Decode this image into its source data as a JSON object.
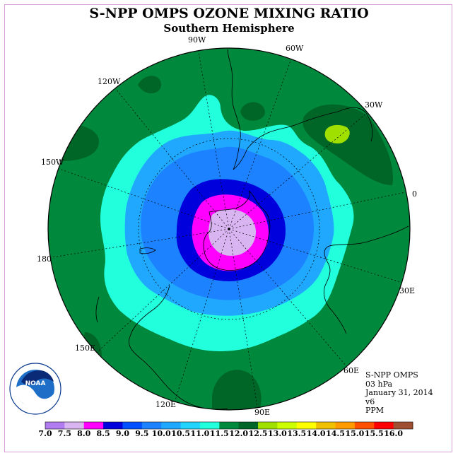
{
  "header": {
    "title": "S-NPP OMPS OZONE MIXING RATIO",
    "subtitle": "Southern Hemisphere"
  },
  "map": {
    "projection": "polar stereographic (south pole)",
    "longitude_labels": {
      "lon_90w": "90W",
      "lon_60w": "60W",
      "lon_30w": "30W",
      "lon_0": "0",
      "lon_30e": "30E",
      "lon_60e": "60E",
      "lon_90e": "90E",
      "lon_120e": "120E",
      "lon_150e": "150E",
      "lon_180": "180",
      "lon_150w": "150W",
      "lon_120w": "120W"
    },
    "field_regions": [
      {
        "name": "pole-core",
        "range_ppm": "7.5-8.0",
        "color": "#d8b4f0"
      },
      {
        "name": "inner-ring",
        "range_ppm": "8.0-8.5",
        "color": "#ff00ff"
      },
      {
        "name": "vortex-edge",
        "range_ppm": "8.5-9.0",
        "color": "#0000dd"
      },
      {
        "name": "mid-ring",
        "range_ppm": "9.0-10.0",
        "color": "#1c82ff"
      },
      {
        "name": "outer-ring",
        "range_ppm": "10.0-11.0",
        "color": "#22ffdd"
      },
      {
        "name": "background",
        "range_ppm": "11.0-11.5",
        "color": "#00883c"
      },
      {
        "name": "dark-patches",
        "range_ppm": "11.5-12.0",
        "color": "#006628"
      },
      {
        "name": "maximum",
        "range_ppm": "12.0-12.5",
        "color": "#a0e000"
      }
    ]
  },
  "info": {
    "instrument": "S-NPP OMPS",
    "level": "03 hPa",
    "date": "January 31, 2014",
    "version": "v6",
    "units": "PPM"
  },
  "logo": {
    "text": "NOAA",
    "ring_text": "NATIONAL OCEANIC AND ATMOSPHERIC ADMINISTRATION U.S. DEPARTMENT OF COMMERCE"
  },
  "colorbar": {
    "labels": [
      "7.0",
      "7.5",
      "8.0",
      "8.5",
      "9.0",
      "9.5",
      "10.0",
      "10.5",
      "11.0",
      "11.5",
      "12.0",
      "12.5",
      "13.0",
      "13.5",
      "14.0",
      "14.5",
      "15.0",
      "15.5",
      "16.0"
    ],
    "colors": [
      "#b07cf0",
      "#d8b4f0",
      "#ff00ff",
      "#0000dd",
      "#0050ff",
      "#1c82ff",
      "#20a8ff",
      "#20d4ff",
      "#22ffdd",
      "#00883c",
      "#006628",
      "#a0e000",
      "#ccff00",
      "#ffff00",
      "#f0c000",
      "#ff9a00",
      "#ff5000",
      "#ff0000",
      "#a05030"
    ]
  }
}
